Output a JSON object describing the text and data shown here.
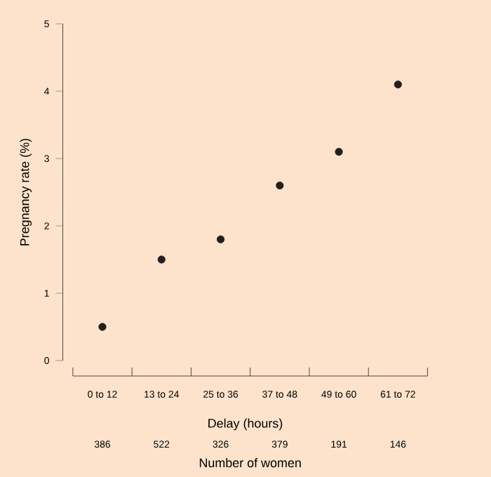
{
  "chart_data": {
    "type": "scatter",
    "xlabel": "Delay (hours)",
    "ylabel": "Pregnancy rate (%)",
    "categories": [
      "0 to 12",
      "13 to 24",
      "25 to 36",
      "37 to 48",
      "49 to 60",
      "61 to 72"
    ],
    "values": [
      0.5,
      1.5,
      1.8,
      2.6,
      3.1,
      4.1
    ],
    "color": "#231f20",
    "marker": "circle",
    "ylim": [
      0,
      5
    ],
    "yticks": [
      0,
      1,
      2,
      3,
      4,
      5
    ],
    "annotations": [
      "386",
      "522",
      "326",
      "379",
      "191",
      "146",
      "Number of women"
    ]
  }
}
